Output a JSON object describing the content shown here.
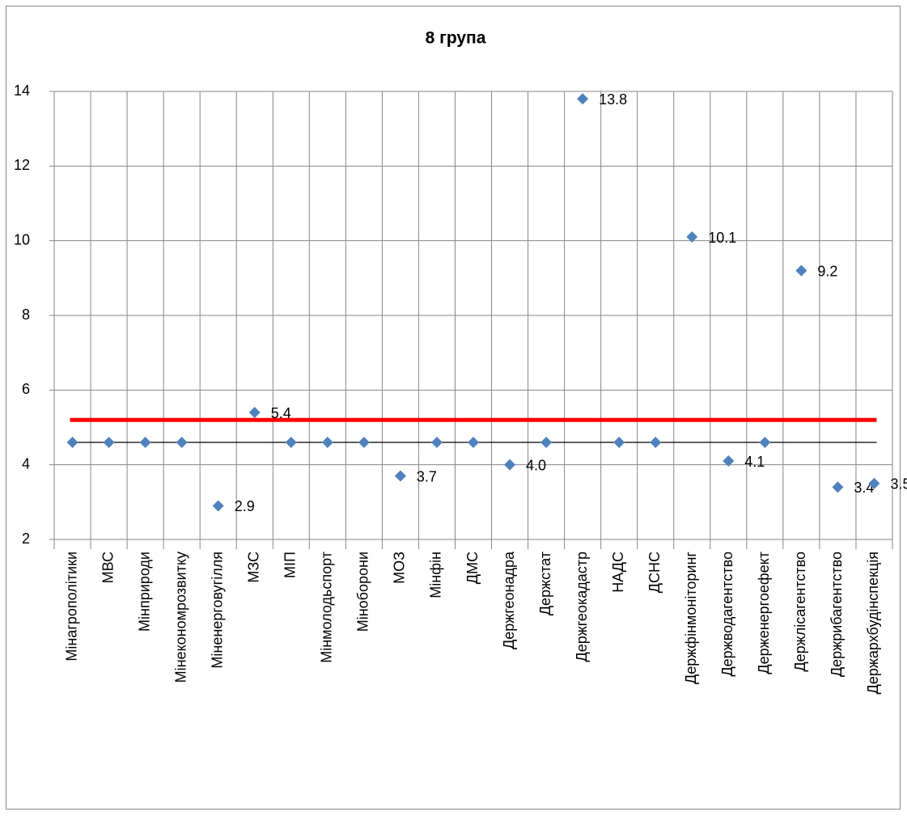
{
  "chart_data": {
    "type": "scatter",
    "title": "8 група",
    "categories": [
      "Мінагрополітики",
      "МВС",
      "Мінприроди",
      "Мінекономрозвитку",
      "Міненерговугілля",
      "МЗС",
      "МІП",
      "Мінмолодьспорт",
      "Міноборони",
      "МОЗ",
      "Мінфін",
      "ДМС",
      "Держгеонадра",
      "Держстат",
      "Держгеокадастр",
      "НАДС",
      "ДСНС",
      "Держфінмоніторинг",
      "Держводагентство",
      "Держенергоефект",
      "Держлісагентство",
      "Держрибагентство",
      "Держархбудінспекція"
    ],
    "values": [
      4.6,
      4.6,
      4.6,
      4.6,
      2.9,
      5.4,
      4.6,
      4.6,
      4.6,
      3.7,
      4.6,
      4.6,
      4.0,
      4.6,
      13.8,
      4.6,
      4.6,
      10.1,
      4.1,
      4.6,
      9.2,
      3.4,
      3.5
    ],
    "value_labels": [
      null,
      null,
      null,
      null,
      "2.9",
      "5.4",
      null,
      null,
      null,
      "3.7",
      null,
      null,
      "4.0",
      null,
      "13.8",
      null,
      null,
      "10.1",
      "4.1",
      null,
      "9.2",
      "3.4",
      "3.5"
    ],
    "color": "#4f81bd",
    "reference_lines": [
      {
        "value": 5.2,
        "color": "#ff0000"
      },
      {
        "value": 4.6,
        "color": "#000000"
      }
    ],
    "ylim": [
      2,
      14
    ],
    "yticks": [
      2,
      4,
      6,
      8,
      10,
      12,
      14
    ],
    "grid": true
  }
}
